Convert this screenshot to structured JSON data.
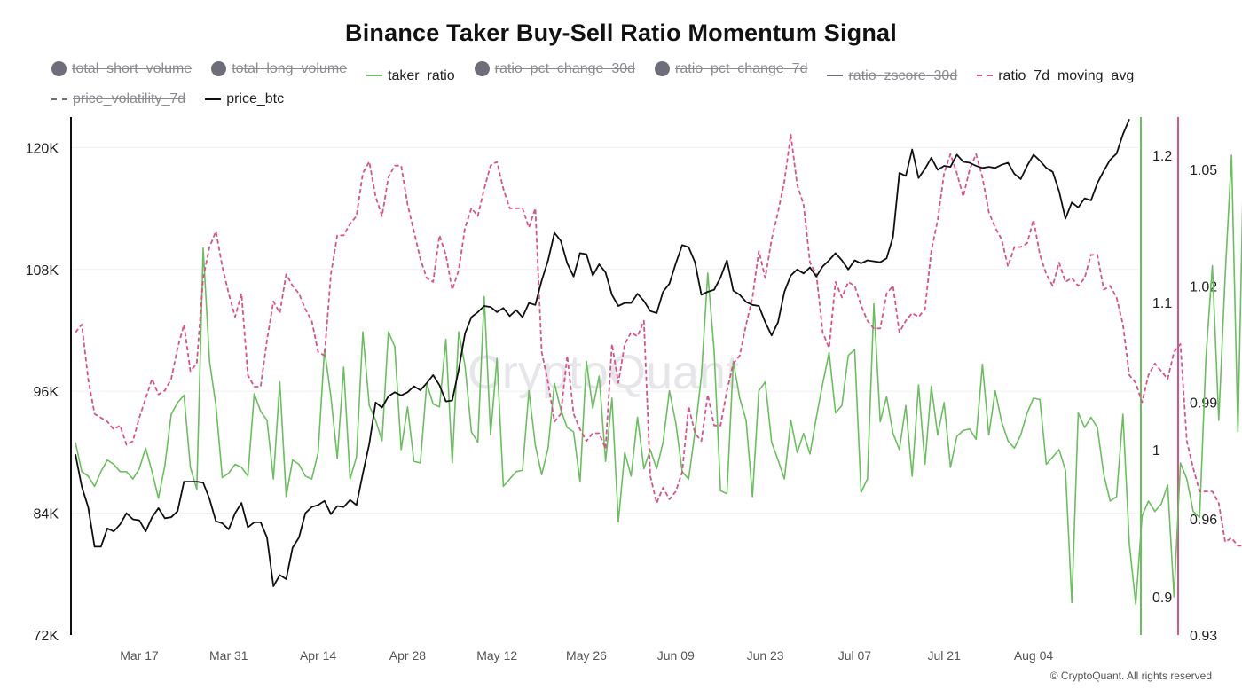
{
  "title": "Binance Taker Buy-Sell Ratio Momentum Signal",
  "watermark": "CryptoQuant",
  "copyright": "© CryptoQuant. All rights reserved",
  "legend": [
    {
      "label": "total_short_volume",
      "swatch": "dot",
      "color": "#6e6d7a",
      "hidden": true
    },
    {
      "label": "total_long_volume",
      "swatch": "dot",
      "color": "#6e6d7a",
      "hidden": true
    },
    {
      "label": "taker_ratio",
      "swatch": "line",
      "color": "#6abf5e",
      "hidden": false
    },
    {
      "label": "ratio_pct_change_30d",
      "swatch": "dot",
      "color": "#6e6d7a",
      "hidden": true
    },
    {
      "label": "ratio_pct_change_7d",
      "swatch": "dot",
      "color": "#6e6d7a",
      "hidden": true
    },
    {
      "label": "ratio_zscore_30d",
      "swatch": "line",
      "color": "#6e6d7a",
      "hidden": true
    },
    {
      "label": "ratio_7d_moving_avg",
      "swatch": "dash",
      "color": "#d9538a",
      "hidden": false
    },
    {
      "label": "price_volatility_7d",
      "swatch": "dash",
      "color": "#6e6d7a",
      "hidden": true
    },
    {
      "label": "price_btc",
      "swatch": "line",
      "color": "#111111",
      "hidden": false
    }
  ],
  "chart_data": {
    "type": "line",
    "x_start": "Mar 07",
    "x_tick_labels": [
      "Mar 17",
      "Mar 31",
      "Apr 14",
      "Apr 28",
      "May 12",
      "May 26",
      "Jun 09",
      "Jun 23",
      "Jul 07",
      "Jul 21",
      "Aug 04"
    ],
    "axes": {
      "price_btc": {
        "ticks": [
          "72K",
          "84K",
          "96K",
          "108K",
          "120K"
        ],
        "range": [
          72000,
          123000
        ]
      },
      "taker_ratio": {
        "ticks": [
          "0.9",
          "1",
          "1.1",
          "1.2"
        ],
        "range": [
          0.874,
          1.226
        ]
      },
      "ratio_7d_moving_avg": {
        "ticks": [
          "0.93",
          "0.96",
          "0.99",
          "1.02",
          "1.05"
        ],
        "range": [
          0.93,
          1.0635
        ]
      }
    },
    "series": [
      {
        "name": "price_btc",
        "color": "#111111",
        "dash": false,
        "axis": "price_btc",
        "values": [
          89800,
          86600,
          84600,
          80700,
          80700,
          82500,
          82200,
          82900,
          84000,
          83400,
          83300,
          82200,
          83600,
          84500,
          83500,
          83600,
          84200,
          87100,
          87100,
          87100,
          87000,
          85400,
          83200,
          83000,
          82400,
          84000,
          85000,
          82600,
          83100,
          83100,
          81600,
          76800,
          77900,
          77500,
          80600,
          81600,
          84000,
          84600,
          84800,
          85200,
          83900,
          84700,
          84600,
          85300,
          84800,
          87900,
          90800,
          94900,
          94400,
          95500,
          95900,
          95600,
          95900,
          96500,
          96100,
          96800,
          97600,
          96600,
          95000,
          95100,
          98100,
          101700,
          103300,
          103800,
          104400,
          104300,
          103800,
          104200,
          103400,
          104000,
          103300,
          104700,
          104500,
          106900,
          108900,
          111600,
          110800,
          108600,
          107300,
          109600,
          109500,
          107400,
          108500,
          107700,
          105500,
          104400,
          104700,
          104700,
          105600,
          104900,
          103900,
          103700,
          105800,
          106600,
          108600,
          110400,
          110200,
          108700,
          105500,
          105800,
          106000,
          107200,
          108900,
          105900,
          105500,
          104800,
          104500,
          104400,
          102800,
          101500,
          102800,
          105800,
          107400,
          108000,
          107600,
          108200,
          107300,
          108300,
          108900,
          109600,
          108900,
          108000,
          108900,
          108600,
          108900,
          108800,
          108700,
          109100,
          111200,
          117500,
          117200,
          119800,
          117000,
          117900,
          119000,
          117800,
          118200,
          118100,
          119300,
          118600,
          118500,
          118200,
          118000,
          118100,
          118000,
          118300,
          118500,
          117400,
          116900,
          118200,
          119300,
          118700,
          118000,
          117600,
          115700,
          113000,
          114600,
          114100,
          115000,
          114800,
          116500,
          117700,
          118800,
          119400,
          121300,
          122800
        ]
      },
      {
        "name": "taker_ratio",
        "color": "#6abf5e",
        "dash": false,
        "axis": "taker_ratio",
        "values": [
          1.005,
          0.985,
          0.982,
          0.975,
          0.985,
          0.993,
          0.99,
          0.985,
          0.985,
          0.98,
          0.987,
          1.001,
          0.985,
          0.967,
          0.989,
          1.024,
          1.032,
          1.037,
          0.988,
          0.973,
          1.137,
          1.06,
          1.03,
          0.981,
          0.984,
          0.99,
          0.988,
          0.982,
          1.038,
          1.026,
          1.02,
          0.98,
          1.046,
          0.968,
          0.993,
          0.99,
          0.982,
          0.98,
          0.998,
          1.068,
          1.036,
          0.994,
          1.056,
          0.98,
          0.995,
          1.08,
          1.03,
          1.02,
          1.006,
          1.08,
          1.07,
          1.0,
          1.029,
          0.992,
          0.991,
          1.045,
          1.031,
          1.029,
          1.075,
          0.991,
          1.08,
          1.057,
          1.012,
          1.005,
          1.104,
          1.01,
          1.062,
          0.975,
          0.98,
          0.985,
          0.986,
          1.04,
          1.003,
          0.983,
          1.001,
          1.045,
          1.027,
          1.015,
          1.012,
          0.978,
          1.06,
          1.028,
          1.05,
          0.992,
          1.035,
          0.951,
          0.998,
          0.982,
          1.022,
          0.987,
          1.0,
          0.987,
          1.005,
          1.04,
          1.018,
          0.985,
          0.98,
          1.012,
          1.05,
          1.12,
          1.067,
          0.972,
          0.97,
          1.06,
          1.035,
          1.02,
          0.968,
          1.04,
          1.046,
          1.005,
          0.993,
          0.98,
          1.02,
          0.998,
          1.011,
          0.997,
          1.022,
          1.045,
          1.066,
          1.025,
          1.03,
          1.064,
          1.068,
          0.971,
          0.98,
          1.099,
          1.019,
          1.036,
          1.011,
          1.0,
          1.03,
          0.982,
          1.044,
          0.99,
          1.043,
          1.01,
          1.032,
          0.988,
          1.009,
          1.013,
          1.014,
          1.007,
          1.058,
          1.01,
          1.04,
          1.019,
          1.006,
          1.001,
          1.01,
          1.025,
          1.035,
          1.034,
          0.99,
          0.995,
          1.0,
          0.986,
          0.896,
          1.025,
          1.015,
          1.022,
          1.015,
          0.983,
          0.965,
          0.968,
          1.024,
          0.936,
          0.895,
          0.955,
          0.965,
          0.958,
          0.963,
          0.976,
          0.9,
          0.991,
          0.98,
          0.958,
          0.954,
          1.063,
          1.125,
          1.02,
          1.118,
          1.2,
          1.012,
          1.221
        ]
      },
      {
        "name": "ratio_7d_moving_avg",
        "color": "#d9538a",
        "dash": true,
        "axis": "ratio_7d_moving_avg",
        "values": [
          1.008,
          1.01,
          0.996,
          0.987,
          0.986,
          0.985,
          0.983,
          0.984,
          0.979,
          0.98,
          0.986,
          0.991,
          0.996,
          0.992,
          0.993,
          0.996,
          1.004,
          1.01,
          0.998,
          1.0,
          1.022,
          1.03,
          1.034,
          1.025,
          1.018,
          1.012,
          1.018,
          0.997,
          0.994,
          0.994,
          1.006,
          1.016,
          1.013,
          1.023,
          1.02,
          1.018,
          1.014,
          1.011,
          1.003,
          1.002,
          1.023,
          1.033,
          1.033,
          1.036,
          1.038,
          1.049,
          1.052,
          1.043,
          1.038,
          1.048,
          1.051,
          1.051,
          1.041,
          1.034,
          1.027,
          1.022,
          1.021,
          1.033,
          1.028,
          1.019,
          1.024,
          1.035,
          1.04,
          1.038,
          1.045,
          1.051,
          1.052,
          1.045,
          1.04,
          1.04,
          1.04,
          1.035,
          1.04,
          1.003,
          0.995,
          0.985,
          0.987,
          1.002,
          0.987,
          0.983,
          0.98,
          0.982,
          0.982,
          0.978,
          1.005,
          0.995,
          1.005,
          1.008,
          1.007,
          1.011,
          0.971,
          0.964,
          0.968,
          0.965,
          0.967,
          0.972,
          0.989,
          0.982,
          0.98,
          0.992,
          0.984,
          0.984,
          0.993,
          1.0,
          1.002,
          1.01,
          1.017,
          1.029,
          1.022,
          1.032,
          1.039,
          1.047,
          1.059,
          1.046,
          1.041,
          1.026,
          1.023,
          1.008,
          1.004,
          1.021,
          1.017,
          1.021,
          1.02,
          1.015,
          1.011,
          1.009,
          1.009,
          1.018,
          1.02,
          1.008,
          1.011,
          1.013,
          1.012,
          1.014,
          1.029,
          1.037,
          1.049,
          1.054,
          1.049,
          1.043,
          1.05,
          1.054,
          1.048,
          1.039,
          1.035,
          1.032,
          1.025,
          1.03,
          1.03,
          1.031,
          1.037,
          1.028,
          1.023,
          1.02,
          1.026,
          1.021,
          1.022,
          1.02,
          1.022,
          1.028,
          1.028,
          1.019,
          1.02,
          1.017,
          1.01,
          0.997,
          0.995,
          0.99,
          0.997,
          1.0,
          0.998,
          0.996,
          1.003,
          1.005,
          0.98,
          0.973,
          0.967,
          0.967,
          0.967,
          0.964,
          0.954,
          0.955,
          0.953,
          0.953,
          0.948,
          0.966,
          0.966,
          0.99,
          1.0,
          1.04
        ]
      }
    ]
  }
}
